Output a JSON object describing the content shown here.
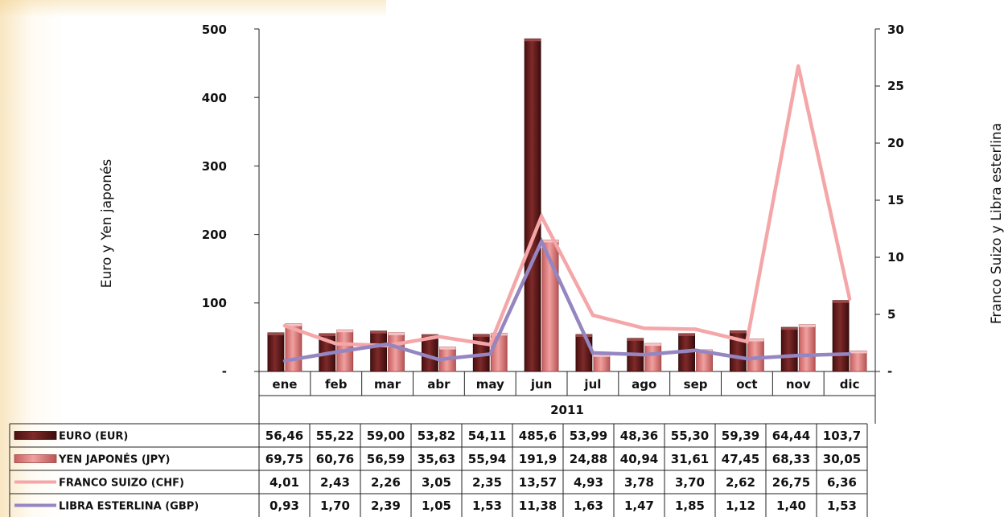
{
  "chart_data": {
    "type": "bar",
    "categories": [
      "ene",
      "feb",
      "mar",
      "abr",
      "may",
      "jun",
      "jul",
      "ago",
      "sep",
      "oct",
      "nov",
      "dic"
    ],
    "group_label": "2011",
    "y_left": {
      "label": "Euro y Yen japonés",
      "ylim": [
        0,
        500
      ],
      "ticks": [
        "-",
        "100",
        "200",
        "300",
        "400",
        "500"
      ]
    },
    "y_right": {
      "label": "Franco Suizo y Libra esterlina",
      "ylim": [
        0,
        30
      ],
      "ticks": [
        "-",
        "5",
        "10",
        "15",
        "20",
        "25",
        "30"
      ]
    },
    "series": [
      {
        "name": "EURO  (EUR)",
        "type": "bar",
        "axis": "left",
        "color": "#6b1c1c",
        "values": [
          56.46,
          55.22,
          59.0,
          53.82,
          54.11,
          485.6,
          53.99,
          48.36,
          55.3,
          59.39,
          64.44,
          103.7
        ],
        "labels": [
          "56,46",
          "55,22",
          "59,00",
          "53,82",
          "54,11",
          "485,6",
          "53,99",
          "48,36",
          "55,30",
          "59,39",
          "64,44",
          "103,7"
        ]
      },
      {
        "name": "YEN JAPONÉS  (JPY)",
        "type": "bar",
        "axis": "left",
        "color": "#e08080",
        "values": [
          69.75,
          60.76,
          56.59,
          35.63,
          55.94,
          191.9,
          24.88,
          40.94,
          31.61,
          47.45,
          68.33,
          30.05
        ],
        "labels": [
          "69,75",
          "60,76",
          "56,59",
          "35,63",
          "55,94",
          "191,9",
          "24,88",
          "40,94",
          "31,61",
          "47,45",
          "68,33",
          "30,05"
        ]
      },
      {
        "name": "FRANCO SUIZO  (CHF)",
        "type": "line",
        "axis": "right",
        "color": "#f4a6a8",
        "values": [
          4.01,
          2.43,
          2.26,
          3.05,
          2.35,
          13.57,
          4.93,
          3.78,
          3.7,
          2.62,
          26.75,
          6.36
        ],
        "labels": [
          "4,01",
          "2,43",
          "2,26",
          "3,05",
          "2,35",
          "13,57",
          "4,93",
          "3,78",
          "3,70",
          "2,62",
          "26,75",
          "6,36"
        ]
      },
      {
        "name": "LIBRA ESTERLINA  (GBP)",
        "type": "line",
        "axis": "right",
        "color": "#9585c0",
        "values": [
          0.93,
          1.7,
          2.39,
          1.05,
          1.53,
          11.38,
          1.63,
          1.47,
          1.85,
          1.12,
          1.4,
          1.53
        ],
        "labels": [
          "0,93",
          "1,70",
          "2,39",
          "1,05",
          "1,53",
          "11,38",
          "1,63",
          "1,47",
          "1,85",
          "1,12",
          "1,40",
          "1,53"
        ]
      }
    ]
  }
}
